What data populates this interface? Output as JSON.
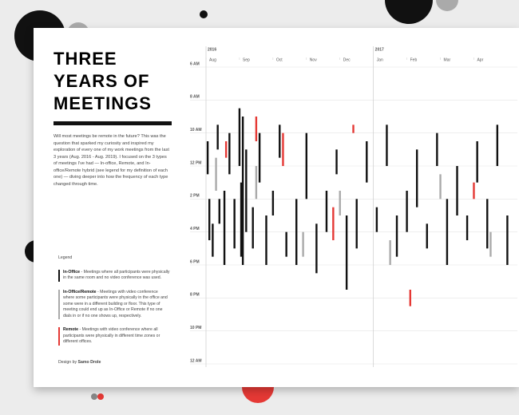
{
  "chart_data": {
    "type": "meeting-bars",
    "title_lines": [
      "THREE",
      "YEARS OF",
      "MEETINGS"
    ],
    "intro": "Will most meetings be remote in the future? This was the question that sparked my curiosity and inspired my exploration of every one of my work meetings from the last 3 years (Aug. 2016 - Aug. 2019). I focused on the 3 types of meetings I've had — In-office, Remote, and In-office/Remote hybrid (see legend for my definition of each one) — diving deeper into how the frequency of each type changed through time.",
    "legend_title": "Legend",
    "credit_prefix": "Design by",
    "credit_name": "Samo Drole",
    "years": [
      {
        "value": 0,
        "label": "2016"
      },
      {
        "value": 5,
        "label": "2017"
      }
    ],
    "xlim": [
      0,
      9.3
    ],
    "xticks": [
      {
        "value": 0,
        "label": "Aug"
      },
      {
        "value": 1,
        "label": "Sep"
      },
      {
        "value": 2,
        "label": "Oct"
      },
      {
        "value": 3,
        "label": "Nov"
      },
      {
        "value": 4,
        "label": "Dec"
      },
      {
        "value": 5,
        "label": "Jan"
      },
      {
        "value": 6,
        "label": "Feb"
      },
      {
        "value": 7,
        "label": "Mar"
      },
      {
        "value": 8,
        "label": "Apr"
      }
    ],
    "ylim": [
      6,
      24
    ],
    "yticks": [
      {
        "value": 6,
        "label": "6 AM"
      },
      {
        "value": 8,
        "label": "8 AM"
      },
      {
        "value": 10,
        "label": "10 AM"
      },
      {
        "value": 12,
        "label": "12 PM"
      },
      {
        "value": 14,
        "label": "2 PM"
      },
      {
        "value": 16,
        "label": "4 PM"
      },
      {
        "value": 18,
        "label": "6 PM"
      },
      {
        "value": 20,
        "label": "8 PM"
      },
      {
        "value": 22,
        "label": "10 PM"
      },
      {
        "value": 24,
        "label": "12 AM"
      }
    ],
    "series": [
      {
        "name": "In-Office",
        "description": "- Meetings where all participants were physically in the same room and no video conference was used.",
        "color": "#111111",
        "x": [
          0.05,
          0.1,
          0.2,
          0.35,
          0.4,
          0.55,
          0.7,
          0.85,
          1.0,
          1.05,
          1.1,
          1.2,
          1.4,
          1.6,
          1.8,
          2.0,
          2.2,
          2.4,
          2.7,
          3.0,
          3.3,
          3.6,
          3.9,
          4.2,
          4.5,
          4.8,
          5.1,
          5.4,
          5.7,
          6.0,
          6.3,
          6.6,
          6.9,
          7.2,
          7.5,
          7.8,
          8.1,
          8.4,
          8.7,
          9.0
        ],
        "start": [
          10.5,
          14,
          15.5,
          9.5,
          14,
          13.5,
          10,
          14,
          8.5,
          13,
          9,
          11,
          14.5,
          10,
          15,
          13.5,
          9.5,
          16,
          14,
          10,
          15.5,
          13.5,
          11,
          15,
          14,
          10.5,
          14.5,
          9.5,
          15,
          13.5,
          11,
          15.5,
          10,
          14,
          12,
          15,
          10.5,
          14,
          9.5,
          15
        ],
        "end": [
          12.5,
          16.5,
          17.5,
          11,
          15.5,
          18,
          12.5,
          17,
          12,
          17.5,
          18,
          16,
          17,
          13,
          18,
          15,
          11.5,
          17.5,
          18,
          14,
          18.5,
          16,
          12.5,
          19.5,
          17,
          13,
          16,
          12,
          17.5,
          16,
          14.5,
          17,
          12,
          18,
          15,
          16.5,
          13,
          17,
          12,
          18
        ]
      },
      {
        "name": "In-Office/Remote",
        "description": "- Meetings with video conference where some participants were physically in the office and some were in a different building or floor. This type of meeting could end up as In-Office or Remote if no one dials in or if no one shows up, respectively.",
        "color": "#aaaaaa",
        "x": [
          0.3,
          1.5,
          2.9,
          4.0,
          5.5,
          7.0,
          8.5
        ],
        "start": [
          11.5,
          12,
          16,
          13.5,
          16.5,
          12.5,
          16
        ],
        "end": [
          13.5,
          14,
          17.5,
          15,
          18,
          14,
          17.5
        ]
      },
      {
        "name": "Remote",
        "description": "- Meetings with video conference where all participants were physically in different time zones or different offices.",
        "color": "#e53935",
        "x": [
          0.6,
          1.5,
          2.3,
          4.4,
          3.8,
          6.1,
          8.0
        ],
        "start": [
          10.5,
          9,
          10,
          9.5,
          14.5,
          19.5,
          13
        ],
        "end": [
          11.5,
          10.5,
          12,
          10,
          16.5,
          20.5,
          14
        ]
      }
    ]
  }
}
